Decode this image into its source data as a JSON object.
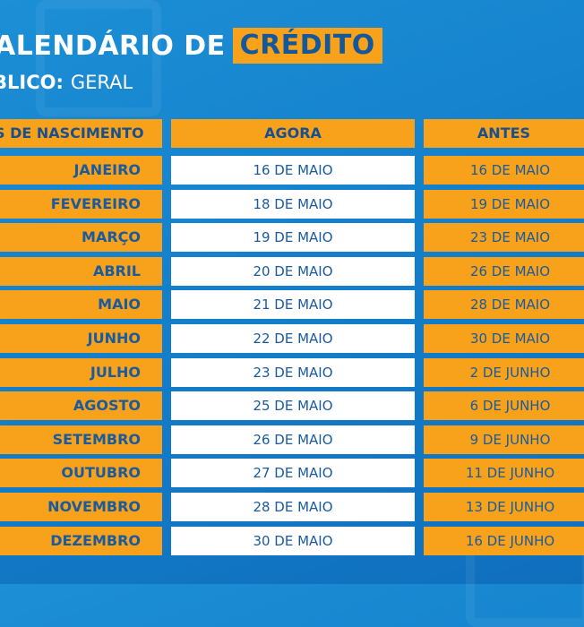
{
  "header": {
    "title_prefix": "ALENDÁRIO DE",
    "title_highlight": "CRÉDITO",
    "subtitle_label": "BLICO:",
    "subtitle_value": "GERAL"
  },
  "table": {
    "columns": [
      "S DE NASCIMENTO",
      "AGORA",
      "ANTES"
    ],
    "rows": [
      {
        "month": "JANEIRO",
        "agora": "16 DE MAIO",
        "antes": "16 DE MAIO"
      },
      {
        "month": "FEVEREIRO",
        "agora": "18 DE MAIO",
        "antes": "19 DE MAIO"
      },
      {
        "month": "MARÇO",
        "agora": "19 DE MAIO",
        "antes": "23 DE MAIO"
      },
      {
        "month": "ABRIL",
        "agora": "20 DE MAIO",
        "antes": "26 DE MAIO"
      },
      {
        "month": "MAIO",
        "agora": "21 DE MAIO",
        "antes": "28 DE MAIO"
      },
      {
        "month": "JUNHO",
        "agora": "22 DE MAIO",
        "antes": "30 DE MAIO"
      },
      {
        "month": "JULHO",
        "agora": "23 DE MAIO",
        "antes": "2 DE JUNHO"
      },
      {
        "month": "AGOSTO",
        "agora": "25 DE MAIO",
        "antes": "6 DE JUNHO"
      },
      {
        "month": "SETEMBRO",
        "agora": "26 DE MAIO",
        "antes": "9 DE JUNHO"
      },
      {
        "month": "OUTUBRO",
        "agora": "27 DE MAIO",
        "antes": "11 DE JUNHO"
      },
      {
        "month": "NOVEMBRO",
        "agora": "28 DE MAIO",
        "antes": "13 DE JUNHO"
      },
      {
        "month": "DEZEMBRO",
        "agora": "30 DE MAIO",
        "antes": "16 DE JUNHO"
      }
    ]
  },
  "colors": {
    "background": "#1480cc",
    "accent": "#f7a21a",
    "text_dark": "#1a5a9e",
    "white": "#ffffff"
  }
}
